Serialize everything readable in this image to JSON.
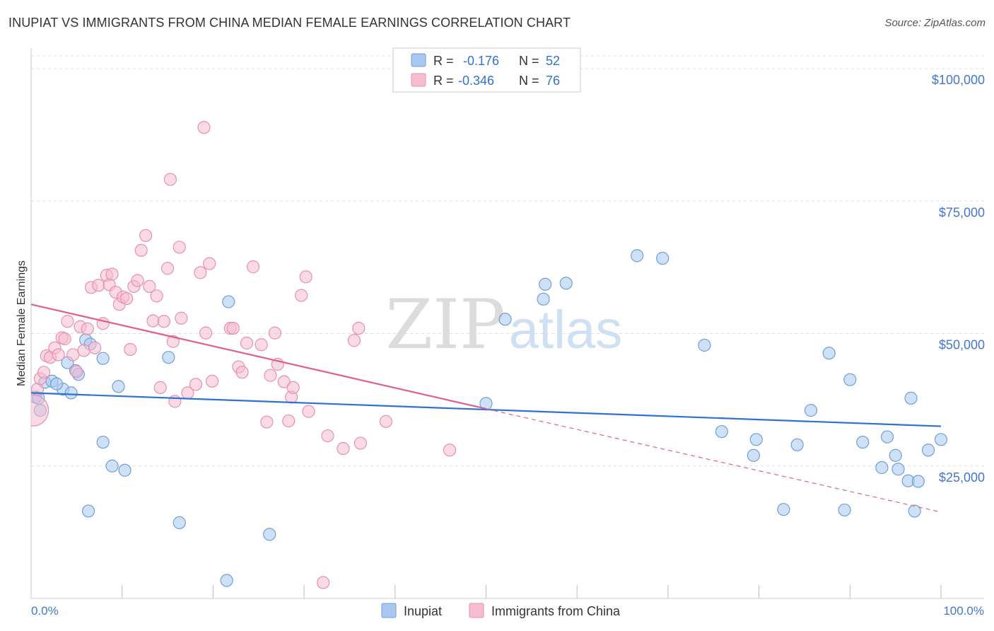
{
  "title": "INUPIAT VS IMMIGRANTS FROM CHINA MEDIAN FEMALE EARNINGS CORRELATION CHART",
  "source": "Source: ZipAtlas.com",
  "watermark": {
    "zip": "ZIP",
    "atlas": "atlas"
  },
  "colors": {
    "blue_fill": "#a8c8f0",
    "blue_stroke": "#6f9fd8",
    "blue_line": "#2f72d0",
    "pink_fill": "#f6bcd0",
    "pink_stroke": "#e890b0",
    "pink_line": "#e0608c",
    "axis_text": "#4477cc",
    "grid": "#dddddd"
  },
  "legend": {
    "rows": [
      {
        "r_label": "R =",
        "r_value": "-0.176",
        "n_label": "N =",
        "n_value": "52",
        "color": "blue"
      },
      {
        "r_label": "R =",
        "r_value": "-0.346",
        "n_label": "N =",
        "n_value": "76",
        "color": "pink"
      }
    ]
  },
  "bottom_legend": [
    {
      "label": "Inupiat",
      "color": "blue"
    },
    {
      "label": "Immigrants from China",
      "color": "pink"
    }
  ],
  "chart_data": {
    "type": "scatter",
    "title": "INUPIAT VS IMMIGRANTS FROM CHINA MEDIAN FEMALE EARNINGS CORRELATION CHART",
    "xlabel": "",
    "ylabel": "Median Female Earnings",
    "xlim": [
      0,
      100
    ],
    "ylim": [
      0,
      105000
    ],
    "x_tick_labels": [
      "0.0%",
      "100.0%"
    ],
    "y_ticks": [
      25000,
      50000,
      75000,
      100000
    ],
    "y_tick_labels": [
      "$25,000",
      "$50,000",
      "$75,000",
      "$100,000"
    ],
    "grid": true,
    "series": [
      {
        "name": "Inupiat",
        "color": "blue",
        "r": -0.176,
        "n": 52,
        "trend": {
          "x0": 0,
          "y0": 38800,
          "x1": 100,
          "y1": 32500
        },
        "points": [
          [
            0.5,
            38000
          ],
          [
            1.0,
            35500
          ],
          [
            1.5,
            40800
          ],
          [
            2.3,
            41000
          ],
          [
            3.5,
            39500
          ],
          [
            4.0,
            44500
          ],
          [
            4.4,
            38800
          ],
          [
            4.9,
            43000
          ],
          [
            5.2,
            42300
          ],
          [
            6.0,
            48800
          ],
          [
            6.5,
            48000
          ],
          [
            7.9,
            45300
          ],
          [
            7.9,
            29500
          ],
          [
            8.9,
            25000
          ],
          [
            9.6,
            40000
          ],
          [
            10.3,
            24200
          ],
          [
            6.3,
            16500
          ],
          [
            15.1,
            45500
          ],
          [
            16.3,
            14300
          ],
          [
            21.7,
            56000
          ],
          [
            21.5,
            3400
          ],
          [
            26.2,
            12100
          ],
          [
            50.0,
            36800
          ],
          [
            52.1,
            52700
          ],
          [
            56.3,
            56500
          ],
          [
            56.5,
            59300
          ],
          [
            58.8,
            59500
          ],
          [
            66.6,
            64700
          ],
          [
            69.4,
            64200
          ],
          [
            74.0,
            47800
          ],
          [
            75.9,
            31500
          ],
          [
            79.4,
            27000
          ],
          [
            79.7,
            30000
          ],
          [
            82.7,
            16800
          ],
          [
            84.2,
            29000
          ],
          [
            85.7,
            35500
          ],
          [
            87.7,
            46300
          ],
          [
            89.4,
            16700
          ],
          [
            90.0,
            41300
          ],
          [
            91.4,
            29500
          ],
          [
            93.5,
            24700
          ],
          [
            94.1,
            30500
          ],
          [
            95.0,
            27000
          ],
          [
            95.3,
            24400
          ],
          [
            96.4,
            22200
          ],
          [
            96.7,
            37800
          ],
          [
            97.5,
            22100
          ],
          [
            97.1,
            16500
          ],
          [
            98.6,
            28000
          ],
          [
            100.0,
            30000
          ],
          [
            2.8,
            40500
          ],
          [
            0.8,
            37800
          ]
        ]
      },
      {
        "name": "Immigrants from China",
        "color": "pink",
        "r": -0.346,
        "n": 76,
        "trend": {
          "x0": 0,
          "y0": 55500,
          "x1": 50,
          "y1": 35800
        },
        "trend_dashed": {
          "x0": 50,
          "y0": 35800,
          "x1": 100,
          "y1": 16300
        },
        "points": [
          [
            0.2,
            35500
          ],
          [
            0.7,
            39500
          ],
          [
            1.0,
            41500
          ],
          [
            1.4,
            42700
          ],
          [
            1.7,
            45800
          ],
          [
            2.1,
            45500
          ],
          [
            2.6,
            47300
          ],
          [
            3.0,
            46000
          ],
          [
            3.4,
            49200
          ],
          [
            3.7,
            49000
          ],
          [
            4.0,
            52300
          ],
          [
            4.6,
            46000
          ],
          [
            5.0,
            42800
          ],
          [
            5.4,
            51300
          ],
          [
            5.8,
            46800
          ],
          [
            6.2,
            50900
          ],
          [
            6.6,
            58700
          ],
          [
            7.0,
            47300
          ],
          [
            7.4,
            59100
          ],
          [
            7.9,
            51900
          ],
          [
            8.3,
            61000
          ],
          [
            8.6,
            59200
          ],
          [
            8.9,
            61200
          ],
          [
            9.3,
            57800
          ],
          [
            9.7,
            55500
          ],
          [
            10.1,
            56900
          ],
          [
            10.5,
            56600
          ],
          [
            10.9,
            47000
          ],
          [
            11.3,
            58900
          ],
          [
            11.7,
            60000
          ],
          [
            12.1,
            65700
          ],
          [
            12.6,
            68500
          ],
          [
            13.0,
            58900
          ],
          [
            13.4,
            52400
          ],
          [
            13.8,
            57100
          ],
          [
            14.2,
            39800
          ],
          [
            14.6,
            52300
          ],
          [
            15.0,
            62300
          ],
          [
            15.3,
            79100
          ],
          [
            15.6,
            48500
          ],
          [
            15.8,
            37200
          ],
          [
            16.3,
            66300
          ],
          [
            16.5,
            52900
          ],
          [
            17.2,
            38800
          ],
          [
            18.1,
            40400
          ],
          [
            18.6,
            61500
          ],
          [
            19.2,
            50100
          ],
          [
            19.6,
            63200
          ],
          [
            19.9,
            41000
          ],
          [
            21.9,
            51000
          ],
          [
            22.2,
            51000
          ],
          [
            22.8,
            43700
          ],
          [
            23.2,
            42700
          ],
          [
            23.7,
            48200
          ],
          [
            24.4,
            62600
          ],
          [
            25.3,
            47900
          ],
          [
            25.9,
            33300
          ],
          [
            26.3,
            42100
          ],
          [
            26.8,
            50100
          ],
          [
            27.1,
            44200
          ],
          [
            27.8,
            40900
          ],
          [
            28.3,
            33500
          ],
          [
            28.6,
            38000
          ],
          [
            28.8,
            39800
          ],
          [
            29.7,
            57200
          ],
          [
            30.2,
            60700
          ],
          [
            30.5,
            35300
          ],
          [
            32.1,
            3000
          ],
          [
            32.6,
            30700
          ],
          [
            34.3,
            28300
          ],
          [
            35.5,
            48700
          ],
          [
            36.0,
            51000
          ],
          [
            36.2,
            29300
          ],
          [
            39.0,
            33400
          ],
          [
            46.0,
            28000
          ],
          [
            19.0,
            88900
          ]
        ]
      }
    ]
  }
}
